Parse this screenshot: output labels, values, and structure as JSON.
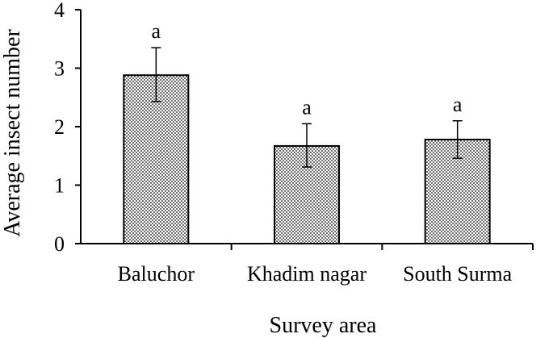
{
  "chart_data": {
    "type": "bar",
    "title": "",
    "xlabel": "Survey area",
    "ylabel": "Average insect number",
    "ylim": [
      0,
      4
    ],
    "yticks": [
      "0",
      "1",
      "2",
      "3",
      "4"
    ],
    "categories": [
      "Baluchor",
      "Khadim nagar",
      "South Surma"
    ],
    "values": [
      2.88,
      1.67,
      1.78
    ],
    "error_upper": [
      3.35,
      2.05,
      2.1
    ],
    "error_lower": [
      2.43,
      1.31,
      1.46
    ],
    "annotations": [
      "a",
      "a",
      "a"
    ],
    "grid": false,
    "legend": "none",
    "colors": {
      "bar_fill": "#9a9a9a",
      "bar_pattern": "checkered grey",
      "axis": "#000000"
    }
  }
}
